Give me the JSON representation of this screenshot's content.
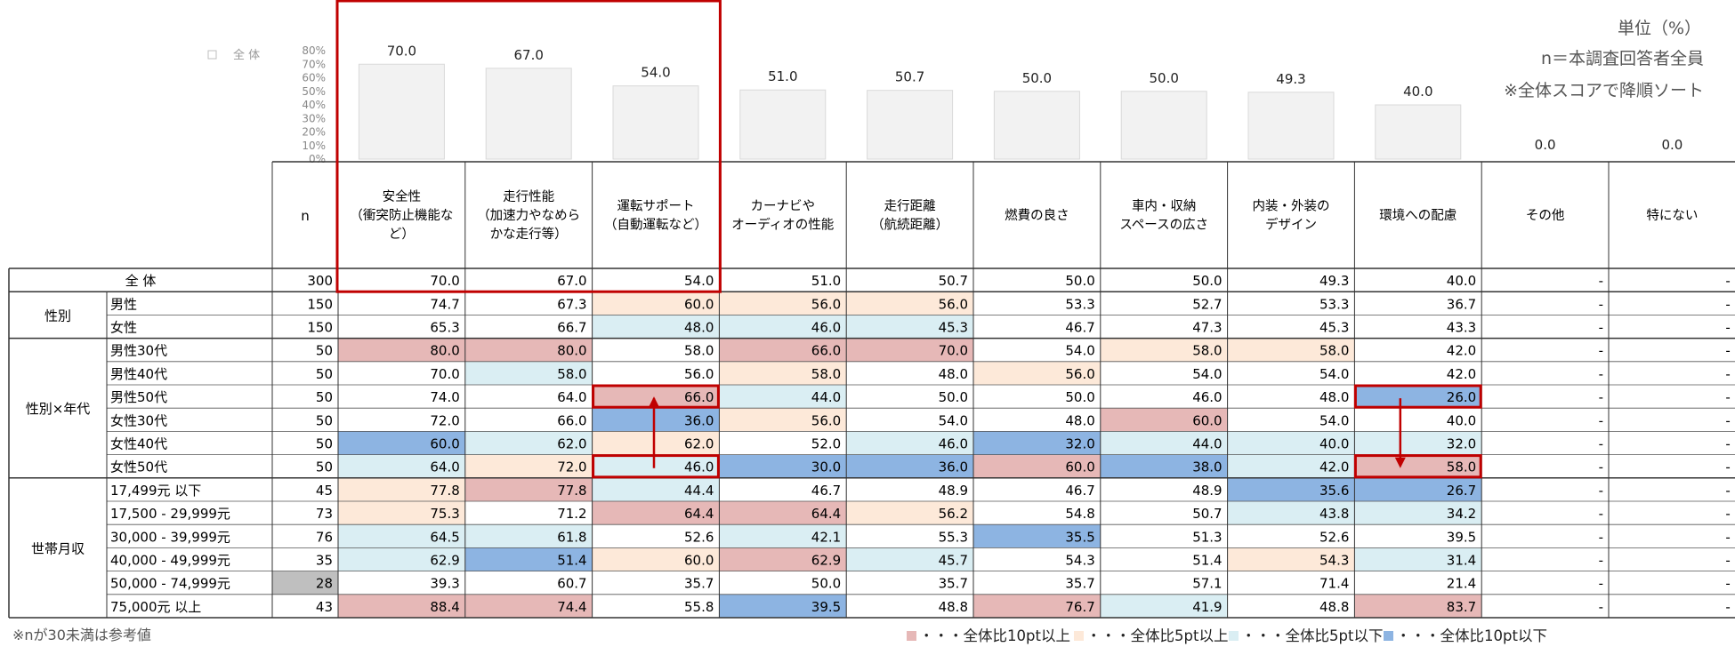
{
  "chart_data": {
    "type": "table",
    "overall_label": "全 体",
    "axis_ticks": [
      "80%",
      "70%",
      "60%",
      "50%",
      "40%",
      "30%",
      "20%",
      "10%",
      "0%"
    ],
    "unit_note": "単位（%）",
    "n_note": "n＝本調査回答者全員",
    "sort_note": "※全体スコアで降順ソート",
    "n_header": "n",
    "footnote": "※nが30未満は参考値",
    "legend": [
      {
        "key": "hi10",
        "text": "・・・全体比10pt以上",
        "color": "#e6b8b7"
      },
      {
        "key": "hi5",
        "text": "・・・全体比5pt以上",
        "color": "#fde9d9"
      },
      {
        "key": "lo5",
        "text": "・・・全体比5pt以下",
        "color": "#daeef3"
      },
      {
        "key": "lo10",
        "text": "・・・全体比10pt以下",
        "color": "#8db4e2"
      }
    ],
    "columns": [
      [
        "安全性",
        "（衝突防止機能な",
        "ど）"
      ],
      [
        "走行性能",
        "（加速力やなめら",
        "かな走行等）"
      ],
      [
        "運転サポート",
        "（自動運転など）"
      ],
      [
        "カーナビや",
        "オーディオの性能"
      ],
      [
        "走行距離",
        "（航続距離）"
      ],
      [
        "燃費の良さ"
      ],
      [
        "車内・収納",
        "スペースの広さ"
      ],
      [
        "内装・外装の",
        "デザイン"
      ],
      [
        "環境への配慮"
      ],
      [
        "その他"
      ],
      [
        "特にない"
      ]
    ],
    "bar_labels": [
      "70.0",
      "67.0",
      "54.0",
      "51.0",
      "50.7",
      "50.0",
      "50.0",
      "49.3",
      "40.0",
      "0.0",
      "0.0"
    ],
    "bar_values": [
      70.0,
      67.0,
      54.0,
      51.0,
      50.7,
      50.0,
      50.0,
      49.3,
      40.0,
      0.0,
      0.0
    ],
    "ylim": [
      0,
      80
    ],
    "total_row": {
      "label": "全 体",
      "n": "300",
      "values": [
        "70.0",
        "67.0",
        "54.0",
        "51.0",
        "50.7",
        "50.0",
        "50.0",
        "49.3",
        "40.0",
        "-",
        "-"
      ]
    },
    "groups": [
      {
        "label": "性別",
        "rows": [
          {
            "label": "男性",
            "n": "150",
            "values": [
              "74.7",
              "67.3",
              "60.0",
              "56.0",
              "56.0",
              "53.3",
              "52.7",
              "53.3",
              "36.7",
              "-",
              "-"
            ],
            "shades": [
              "",
              "",
              "hi5",
              "hi5",
              "hi5",
              "",
              "",
              "",
              "",
              "",
              ""
            ]
          },
          {
            "label": "女性",
            "n": "150",
            "values": [
              "65.3",
              "66.7",
              "48.0",
              "46.0",
              "45.3",
              "46.7",
              "47.3",
              "45.3",
              "43.3",
              "-",
              "-"
            ],
            "shades": [
              "",
              "",
              "lo5",
              "lo5",
              "lo5",
              "",
              "",
              "",
              "",
              "",
              ""
            ]
          }
        ]
      },
      {
        "label": "性別×年代",
        "rows": [
          {
            "label": "男性30代",
            "n": "50",
            "values": [
              "80.0",
              "80.0",
              "58.0",
              "66.0",
              "70.0",
              "54.0",
              "58.0",
              "58.0",
              "42.0",
              "-",
              "-"
            ],
            "shades": [
              "hi10",
              "hi10",
              "",
              "hi10",
              "hi10",
              "",
              "hi5",
              "hi5",
              "",
              "",
              ""
            ]
          },
          {
            "label": "男性40代",
            "n": "50",
            "values": [
              "70.0",
              "58.0",
              "56.0",
              "58.0",
              "48.0",
              "56.0",
              "54.0",
              "54.0",
              "42.0",
              "-",
              "-"
            ],
            "shades": [
              "",
              "lo5",
              "",
              "hi5",
              "",
              "hi5",
              "",
              "",
              "",
              "",
              ""
            ]
          },
          {
            "label": "男性50代",
            "n": "50",
            "values": [
              "74.0",
              "64.0",
              "66.0",
              "44.0",
              "50.0",
              "50.0",
              "46.0",
              "48.0",
              "26.0",
              "-",
              "-"
            ],
            "shades": [
              "",
              "",
              "hi10",
              "lo5",
              "",
              "",
              "",
              "",
              "lo10",
              "",
              ""
            ]
          },
          {
            "label": "女性30代",
            "n": "50",
            "values": [
              "72.0",
              "66.0",
              "36.0",
              "56.0",
              "54.0",
              "48.0",
              "60.0",
              "54.0",
              "40.0",
              "-",
              "-"
            ],
            "shades": [
              "",
              "",
              "lo10",
              "hi5",
              "",
              "",
              "hi10",
              "",
              "",
              "",
              ""
            ]
          },
          {
            "label": "女性40代",
            "n": "50",
            "values": [
              "60.0",
              "62.0",
              "62.0",
              "52.0",
              "46.0",
              "32.0",
              "44.0",
              "40.0",
              "32.0",
              "-",
              "-"
            ],
            "shades": [
              "lo10",
              "lo5",
              "hi5",
              "",
              "lo5",
              "lo10",
              "lo5",
              "lo5",
              "lo5",
              "",
              ""
            ]
          },
          {
            "label": "女性50代",
            "n": "50",
            "values": [
              "64.0",
              "72.0",
              "46.0",
              "30.0",
              "36.0",
              "60.0",
              "38.0",
              "42.0",
              "58.0",
              "-",
              "-"
            ],
            "shades": [
              "lo5",
              "hi5",
              "lo5",
              "lo10",
              "lo10",
              "hi10",
              "lo10",
              "lo5",
              "hi10",
              "",
              ""
            ]
          }
        ]
      },
      {
        "label": "世帯月収",
        "rows": [
          {
            "label": "17,499元  以下",
            "n": "45",
            "values": [
              "77.8",
              "77.8",
              "44.4",
              "46.7",
              "48.9",
              "46.7",
              "48.9",
              "35.6",
              "26.7",
              "-",
              "-"
            ],
            "shades": [
              "hi5",
              "hi10",
              "lo5",
              "",
              "",
              "",
              "",
              "lo10",
              "lo10",
              "",
              ""
            ]
          },
          {
            "label": "17,500  -  29,999元",
            "n": "73",
            "values": [
              "75.3",
              "71.2",
              "64.4",
              "64.4",
              "56.2",
              "54.8",
              "50.7",
              "43.8",
              "34.2",
              "-",
              "-"
            ],
            "shades": [
              "hi5",
              "",
              "hi10",
              "hi10",
              "hi5",
              "",
              "",
              "lo5",
              "lo5",
              "",
              ""
            ]
          },
          {
            "label": "30,000  -  39,999元",
            "n": "76",
            "values": [
              "64.5",
              "61.8",
              "52.6",
              "42.1",
              "55.3",
              "35.5",
              "51.3",
              "52.6",
              "39.5",
              "-",
              "-"
            ],
            "shades": [
              "lo5",
              "lo5",
              "",
              "lo5",
              "",
              "lo10",
              "",
              "",
              "",
              "",
              ""
            ]
          },
          {
            "label": "40,000  -  49,999元",
            "n": "35",
            "values": [
              "62.9",
              "51.4",
              "60.0",
              "62.9",
              "45.7",
              "54.3",
              "51.4",
              "54.3",
              "31.4",
              "-",
              "-"
            ],
            "shades": [
              "lo5",
              "lo10",
              "hi5",
              "hi10",
              "lo5",
              "",
              "",
              "hi5",
              "lo5",
              "",
              ""
            ]
          },
          {
            "label": "50,000  -  74,999元",
            "n": "28",
            "ref": true,
            "values": [
              "39.3",
              "60.7",
              "35.7",
              "50.0",
              "35.7",
              "35.7",
              "57.1",
              "71.4",
              "21.4",
              "-",
              "-"
            ],
            "shades": [
              "",
              "",
              "",
              "",
              "",
              "",
              "",
              "",
              "",
              "",
              ""
            ]
          },
          {
            "label": "75,000元  以上",
            "n": "43",
            "values": [
              "88.4",
              "74.4",
              "55.8",
              "39.5",
              "48.8",
              "76.7",
              "41.9",
              "48.8",
              "83.7",
              "-",
              "-"
            ],
            "shades": [
              "hi10",
              "hi10",
              "",
              "lo10",
              "",
              "hi10",
              "lo5",
              "",
              "hi10",
              "",
              ""
            ]
          }
        ]
      }
    ]
  }
}
